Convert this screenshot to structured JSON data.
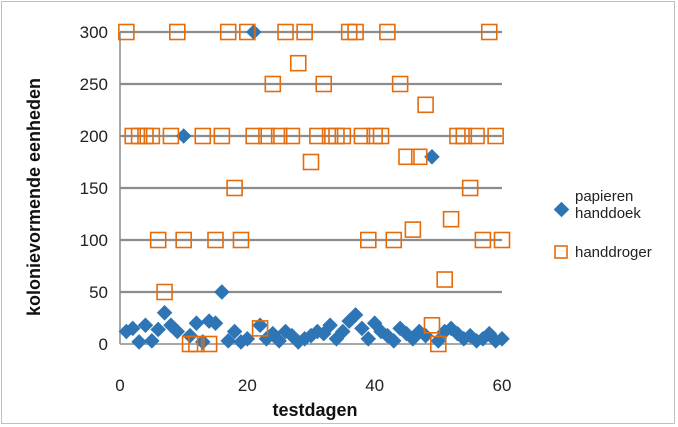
{
  "chart_data": {
    "type": "scatter",
    "xlabel": "testdagen",
    "ylabel": "kolonievormende eenheden",
    "xlim": [
      0,
      60
    ],
    "ylim": [
      0,
      300
    ],
    "xticks": [
      0,
      20,
      40,
      60
    ],
    "yticks": [
      0,
      50,
      100,
      150,
      200,
      250,
      300
    ],
    "grid": "horizontal",
    "legend": "right",
    "series": [
      {
        "name": "papieren handdoek",
        "marker": "diamond",
        "color": "#2e75b6",
        "points": [
          [
            1,
            12
          ],
          [
            2,
            15
          ],
          [
            3,
            2
          ],
          [
            4,
            18
          ],
          [
            5,
            3
          ],
          [
            6,
            14
          ],
          [
            7,
            30
          ],
          [
            8,
            18
          ],
          [
            9,
            12
          ],
          [
            10,
            200
          ],
          [
            11,
            8
          ],
          [
            12,
            20
          ],
          [
            13,
            2
          ],
          [
            14,
            22
          ],
          [
            15,
            20
          ],
          [
            16,
            50
          ],
          [
            17,
            3
          ],
          [
            18,
            12
          ],
          [
            19,
            2
          ],
          [
            20,
            5
          ],
          [
            21,
            300
          ],
          [
            22,
            18
          ],
          [
            23,
            5
          ],
          [
            24,
            10
          ],
          [
            25,
            3
          ],
          [
            26,
            12
          ],
          [
            27,
            8
          ],
          [
            28,
            2
          ],
          [
            29,
            5
          ],
          [
            30,
            8
          ],
          [
            31,
            12
          ],
          [
            32,
            10
          ],
          [
            33,
            18
          ],
          [
            34,
            5
          ],
          [
            35,
            12
          ],
          [
            36,
            22
          ],
          [
            37,
            28
          ],
          [
            38,
            15
          ],
          [
            39,
            5
          ],
          [
            40,
            20
          ],
          [
            41,
            12
          ],
          [
            42,
            8
          ],
          [
            43,
            3
          ],
          [
            44,
            15
          ],
          [
            45,
            10
          ],
          [
            46,
            5
          ],
          [
            47,
            12
          ],
          [
            48,
            8
          ],
          [
            49,
            180
          ],
          [
            50,
            3
          ],
          [
            51,
            12
          ],
          [
            52,
            15
          ],
          [
            53,
            10
          ],
          [
            54,
            5
          ],
          [
            55,
            8
          ],
          [
            56,
            3
          ],
          [
            57,
            5
          ],
          [
            58,
            10
          ],
          [
            59,
            3
          ],
          [
            60,
            5
          ]
        ]
      },
      {
        "name": "handdroger",
        "marker": "square",
        "color": "#e46c0a",
        "points": [
          [
            1,
            300
          ],
          [
            2,
            200
          ],
          [
            3,
            200
          ],
          [
            4,
            200
          ],
          [
            5,
            200
          ],
          [
            6,
            100
          ],
          [
            7,
            50
          ],
          [
            8,
            200
          ],
          [
            9,
            300
          ],
          [
            10,
            100
          ],
          [
            11,
            0
          ],
          [
            12,
            0
          ],
          [
            13,
            200
          ],
          [
            14,
            0
          ],
          [
            15,
            100
          ],
          [
            16,
            200
          ],
          [
            17,
            300
          ],
          [
            18,
            150
          ],
          [
            19,
            100
          ],
          [
            20,
            300
          ],
          [
            21,
            200
          ],
          [
            22,
            15
          ],
          [
            23,
            200
          ],
          [
            24,
            250
          ],
          [
            25,
            200
          ],
          [
            26,
            300
          ],
          [
            27,
            200
          ],
          [
            28,
            270
          ],
          [
            29,
            300
          ],
          [
            30,
            175
          ],
          [
            31,
            200
          ],
          [
            32,
            250
          ],
          [
            33,
            200
          ],
          [
            34,
            200
          ],
          [
            35,
            200
          ],
          [
            36,
            300
          ],
          [
            37,
            300
          ],
          [
            38,
            200
          ],
          [
            39,
            100
          ],
          [
            40,
            200
          ],
          [
            41,
            200
          ],
          [
            42,
            300
          ],
          [
            43,
            100
          ],
          [
            44,
            250
          ],
          [
            45,
            180
          ],
          [
            46,
            110
          ],
          [
            47,
            180
          ],
          [
            48,
            230
          ],
          [
            49,
            18
          ],
          [
            50,
            0
          ],
          [
            51,
            62
          ],
          [
            52,
            120
          ],
          [
            53,
            200
          ],
          [
            54,
            200
          ],
          [
            55,
            150
          ],
          [
            56,
            200
          ],
          [
            57,
            100
          ],
          [
            58,
            300
          ],
          [
            59,
            200
          ],
          [
            60,
            100
          ]
        ]
      }
    ]
  }
}
